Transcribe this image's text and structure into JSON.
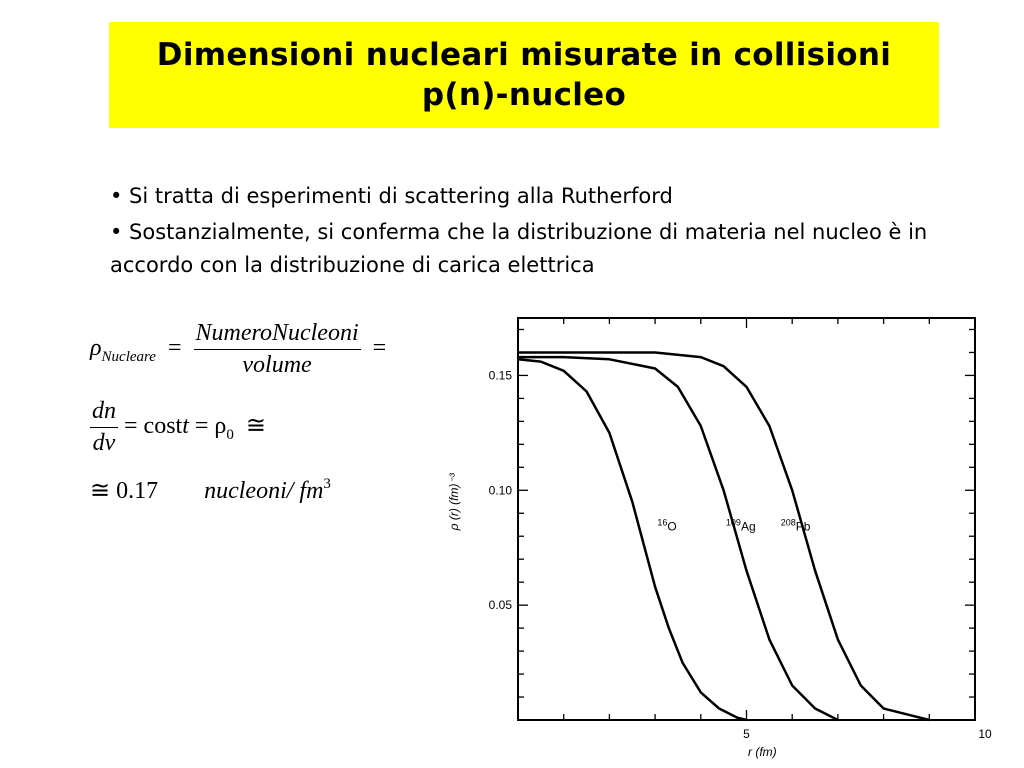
{
  "title": {
    "line1": "Dimensioni nucleari misurate in collisioni",
    "line2": "p(n)-nucleo"
  },
  "bullets": [
    "• Si tratta di esperimenti di scattering alla Rutherford",
    "• Sostanzialmente, si conferma che la distribuzione di materia nel nucleo è in accordo con la distribuzione di carica elettrica"
  ],
  "formulas": {
    "rho_symbol": "ρ",
    "rho_sub": "Nucleare",
    "eq": "=",
    "frac1_num": "NumeroNucleoni",
    "frac1_den": "volume",
    "frac2_num": "dn",
    "frac2_den": "dv",
    "cost_text": "= cost",
    "t": "t",
    "eq_rho0": "= ρ",
    "rho0_sub": "0",
    "approx": "≅",
    "value": "≅ 0.17",
    "unit": "nucleoni/ fm",
    "unit_exp": "3"
  },
  "chart_data": {
    "type": "line",
    "xlabel": "r (fm)",
    "ylabel": "ρ (r)  (fm)⁻³",
    "xlim": [
      0,
      10
    ],
    "ylim": [
      0,
      0.175
    ],
    "xticks": [
      5,
      10
    ],
    "yticks": [
      0.05,
      0.1,
      0.15
    ],
    "ytick_labels": [
      "0.05",
      "0.10",
      "0.15"
    ],
    "xtick_labels": [
      "5",
      "10"
    ],
    "series": [
      {
        "name": "¹⁶O",
        "label_main": "O",
        "label_sup": "16",
        "x": [
          0,
          0.5,
          1.0,
          1.5,
          2.0,
          2.5,
          3.0,
          3.3,
          3.6,
          4.0,
          4.4,
          4.8,
          5.0
        ],
        "y": [
          0.157,
          0.156,
          0.152,
          0.143,
          0.125,
          0.095,
          0.058,
          0.04,
          0.025,
          0.012,
          0.005,
          0.001,
          0.0
        ]
      },
      {
        "name": "¹⁰⁹Ag",
        "label_main": "Ag",
        "label_sup": "109",
        "x": [
          0,
          1.0,
          2.0,
          3.0,
          3.5,
          4.0,
          4.5,
          5.0,
          5.5,
          6.0,
          6.5,
          7.0
        ],
        "y": [
          0.158,
          0.158,
          0.157,
          0.153,
          0.145,
          0.128,
          0.1,
          0.065,
          0.035,
          0.015,
          0.005,
          0.0
        ]
      },
      {
        "name": "²⁰⁸Pb",
        "label_main": "Pb",
        "label_sup": "208",
        "x": [
          0,
          1.0,
          2.0,
          3.0,
          4.0,
          4.5,
          5.0,
          5.5,
          6.0,
          6.5,
          7.0,
          7.5,
          8.0,
          9.0
        ],
        "y": [
          0.16,
          0.16,
          0.16,
          0.16,
          0.158,
          0.154,
          0.145,
          0.128,
          0.1,
          0.065,
          0.035,
          0.015,
          0.005,
          0.0
        ]
      }
    ],
    "colors": {
      "curve": "#000000",
      "frame": "#000000"
    }
  }
}
